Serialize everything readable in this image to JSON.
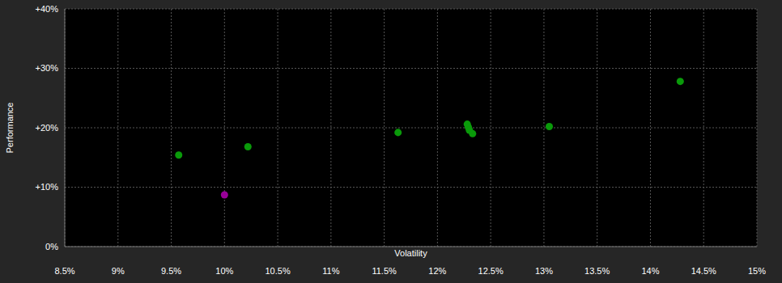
{
  "chart_data": {
    "type": "scatter",
    "x_label": "Volatility",
    "y_label": "Performance",
    "x": [
      9.57,
      10.0,
      10.22,
      11.63,
      12.28,
      12.29,
      12.3,
      12.33,
      13.05,
      14.28
    ],
    "values": [
      15.4,
      8.7,
      16.8,
      19.2,
      20.6,
      20.1,
      19.6,
      19.0,
      20.2,
      27.8
    ],
    "colors": [
      "#0a9a0a",
      "#990099",
      "#0a9a0a",
      "#0a9a0a",
      "#0a9a0a",
      "#0a9a0a",
      "#0a9a0a",
      "#0a9a0a",
      "#0a9a0a",
      "#0a9a0a"
    ],
    "xlim": [
      8.5,
      15
    ],
    "xticks": [
      {
        "value": 8.5,
        "label": "8.5%"
      },
      {
        "value": 9,
        "label": "9%"
      },
      {
        "value": 9.5,
        "label": "9.5%"
      },
      {
        "value": 10,
        "label": "10%"
      },
      {
        "value": 10.5,
        "label": "10.5%"
      },
      {
        "value": 11,
        "label": "11%"
      },
      {
        "value": 11.5,
        "label": "11.5%"
      },
      {
        "value": 12,
        "label": "12%"
      },
      {
        "value": 12.5,
        "label": "12.5%"
      },
      {
        "value": 13,
        "label": "13%"
      },
      {
        "value": 13.5,
        "label": "13.5%"
      },
      {
        "value": 14,
        "label": "14%"
      },
      {
        "value": 14.5,
        "label": "14.5%"
      },
      {
        "value": 15,
        "label": "15%"
      }
    ],
    "ylim": [
      0,
      40
    ],
    "yticks": [
      {
        "value": 0,
        "label": "0%"
      },
      {
        "value": 10,
        "label": "+10%"
      },
      {
        "value": 20,
        "label": "+20%"
      },
      {
        "value": 30,
        "label": "+30%"
      },
      {
        "value": 40,
        "label": "+40%"
      }
    ],
    "grid": true,
    "marker": "circle"
  }
}
